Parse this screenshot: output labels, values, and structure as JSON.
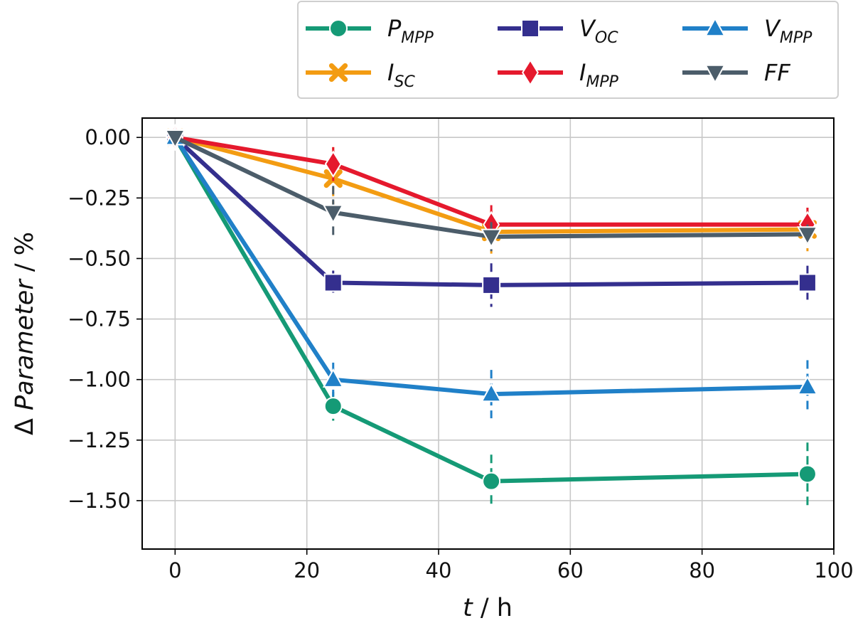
{
  "chart_data": {
    "type": "line",
    "x": [
      0,
      24,
      48,
      96
    ],
    "xlim": [
      -5,
      100
    ],
    "ylim": [
      -1.7,
      0.08
    ],
    "xticks": [
      0,
      20,
      40,
      60,
      80,
      100
    ],
    "yticks": [
      0.0,
      -0.25,
      -0.5,
      -0.75,
      -1.0,
      -1.25,
      -1.5
    ],
    "xtick_labels": [
      "0",
      "20",
      "40",
      "60",
      "80",
      "100"
    ],
    "ytick_labels": [
      "0.00",
      "−0.25",
      "−0.50",
      "−0.75",
      "−1.00",
      "−1.25",
      "−1.50"
    ],
    "xlabel_italic": "t",
    "xlabel_rest": " / h",
    "ylabel_prefix": "Δ ",
    "ylabel_italic": "Parameter",
    "ylabel_rest": " / %",
    "grid": true,
    "legend_position": "top-right",
    "series": [
      {
        "name": "P",
        "sub": "MPP",
        "color": "#159a76",
        "marker": "circle",
        "values": [
          0,
          -1.11,
          -1.42,
          -1.39
        ],
        "errors": [
          0.03,
          0.06,
          0.11,
          0.13
        ]
      },
      {
        "name": "I",
        "sub": "SC",
        "color": "#f39c12",
        "marker": "x",
        "values": [
          0,
          -0.17,
          -0.39,
          -0.38
        ],
        "errors": [
          0.02,
          0.13,
          0.09,
          0.09
        ]
      },
      {
        "name": "V",
        "sub": "OC",
        "color": "#342f8e",
        "marker": "square",
        "values": [
          0,
          -0.6,
          -0.61,
          -0.6
        ],
        "errors": [
          0.02,
          0.05,
          0.09,
          0.07
        ]
      },
      {
        "name": "I",
        "sub": "MPP",
        "color": "#e5192d",
        "marker": "diamond",
        "values": [
          0,
          -0.11,
          -0.36,
          -0.36
        ],
        "errors": [
          0.03,
          0.07,
          0.08,
          0.07
        ]
      },
      {
        "name": "V",
        "sub": "MPP",
        "color": "#2080c8",
        "marker": "triangle-up",
        "values": [
          0,
          -1.0,
          -1.06,
          -1.03
        ],
        "errors": [
          0.02,
          0.07,
          0.1,
          0.11
        ]
      },
      {
        "name": "FF",
        "sub": "",
        "color": "#4c5d6a",
        "marker": "triangle-down",
        "values": [
          0,
          -0.31,
          -0.41,
          -0.4
        ],
        "errors": [
          0.02,
          0.11,
          0.06,
          0.04
        ]
      }
    ]
  }
}
